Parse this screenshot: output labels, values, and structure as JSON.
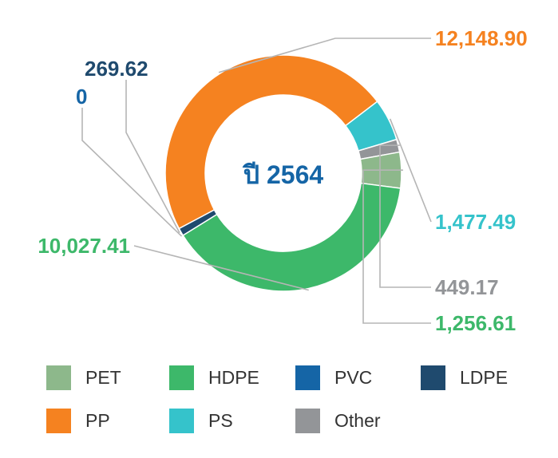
{
  "chart_data": {
    "type": "donut",
    "center_label": "ปี 2564",
    "slices": [
      {
        "name": "PP",
        "value": 12148.9,
        "label": "12,148.90",
        "color": "#F58220",
        "label_color": "#F58220"
      },
      {
        "name": "PS",
        "value": 1477.49,
        "label": "1,477.49",
        "color": "#35C3CB",
        "label_color": "#35C3CB"
      },
      {
        "name": "Other",
        "value": 449.17,
        "label": "449.17",
        "color": "#939598",
        "label_color": "#939598"
      },
      {
        "name": "PET",
        "value": 1256.61,
        "label": "1,256.61",
        "color": "#8DB88B",
        "label_color": "#3DB86A"
      },
      {
        "name": "HDPE",
        "value": 10027.41,
        "label": "10,027.41",
        "color": "#3DB86A",
        "label_color": "#3DB86A"
      },
      {
        "name": "PVC",
        "value": 0,
        "label": "0",
        "color": "#1565A6",
        "label_color": "#1565A6"
      },
      {
        "name": "LDPE",
        "value": 269.62,
        "label": "269.62",
        "color": "#1F4A6E",
        "label_color": "#1F4A6E"
      }
    ],
    "legend": [
      {
        "name": "PET",
        "color": "#8DB88B"
      },
      {
        "name": "HDPE",
        "color": "#3DB86A"
      },
      {
        "name": "PVC",
        "color": "#1565A6"
      },
      {
        "name": "LDPE",
        "color": "#1F4A6E"
      },
      {
        "name": "PP",
        "color": "#F58220"
      },
      {
        "name": "PS",
        "color": "#35C3CB"
      },
      {
        "name": "Other",
        "color": "#939598"
      }
    ],
    "legend_position": "bottom",
    "leader_line_color": "#B5B5B5",
    "center_label_color": "#1565A6"
  }
}
